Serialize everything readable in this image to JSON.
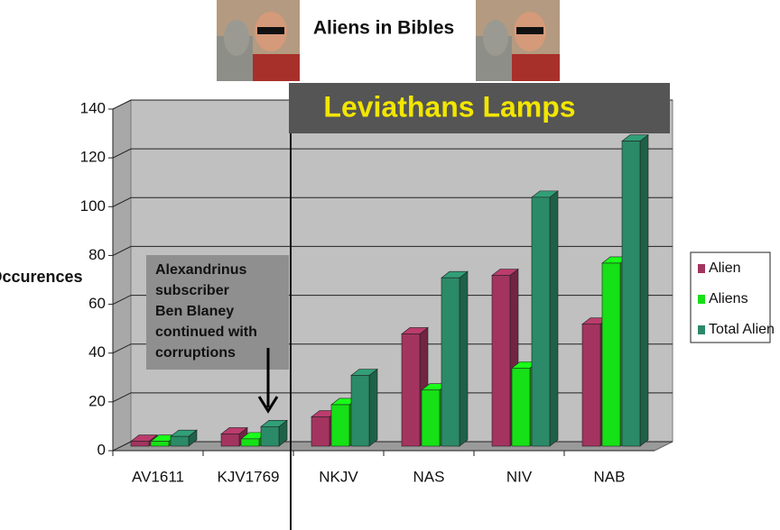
{
  "chart_data": {
    "type": "bar3d",
    "title": "Aliens in Bibles",
    "y_label": "Occurences",
    "categories": [
      "AV1611",
      "KJV1769",
      "NKJV",
      "NAS",
      "NIV",
      "NAB"
    ],
    "series": [
      {
        "name": "Alien",
        "color": "#a3345f",
        "values": [
          2,
          5,
          12,
          46,
          70,
          50
        ]
      },
      {
        "name": "Aliens",
        "color": "#16e016",
        "values": [
          2,
          3,
          17,
          23,
          32,
          75
        ]
      },
      {
        "name": "Total Alien",
        "color": "#2b8a68",
        "values": [
          4,
          8,
          29,
          69,
          102,
          125
        ]
      }
    ],
    "ylim": [
      0,
      140
    ],
    "yticks": [
      0,
      20,
      40,
      60,
      80,
      100,
      120,
      140
    ],
    "grid": true,
    "legend": "right",
    "banner": "Leviathans Lamps",
    "note_lines": [
      "Alexandrinus",
      "subscriber",
      "Ben Blaney",
      "continued with",
      "corruptions"
    ]
  }
}
